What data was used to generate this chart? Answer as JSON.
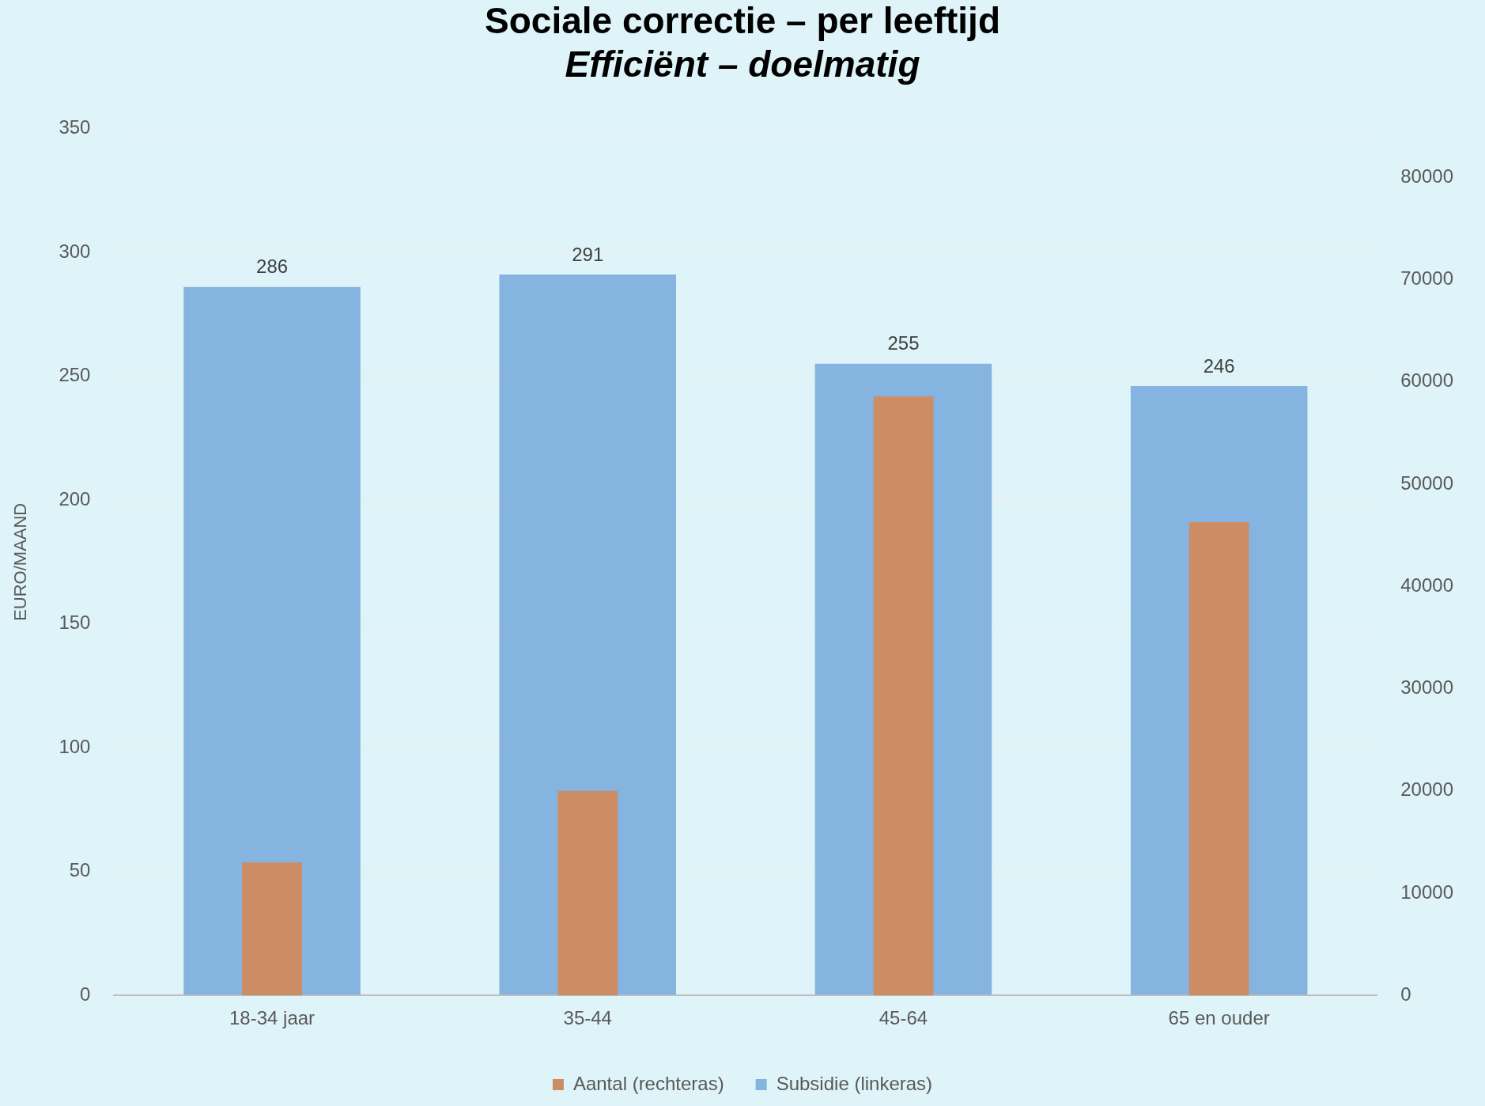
{
  "chart_data": {
    "type": "bar",
    "title": "Sociale correctie – per leeftijd",
    "subtitle": "Efficiënt – doelmatig",
    "ylabel": "EURO/MAAND",
    "categories": [
      "18-34 jaar",
      "35-44",
      "45-64",
      "65 en ouder"
    ],
    "series": [
      {
        "name": "Subsidie (linkeras)",
        "color": "#84b4df",
        "values": [
          286,
          291,
          255,
          246
        ],
        "value_labels": [
          "286",
          "291",
          "255",
          "246"
        ]
      },
      {
        "name": "Aantal (rechteras)",
        "color": "#cc8d64",
        "values": [
          13000,
          20000,
          58600,
          46300
        ],
        "axis": "y2"
      }
    ],
    "ylim": [
      0,
      350
    ],
    "yticks": [
      0,
      50,
      100,
      150,
      200,
      250,
      300,
      350
    ],
    "y2lim": [
      0,
      84800
    ],
    "y2ticks": [
      0,
      10000,
      20000,
      30000,
      40000,
      50000,
      60000,
      70000,
      80000
    ],
    "grid": "y",
    "legend": "bottom"
  }
}
